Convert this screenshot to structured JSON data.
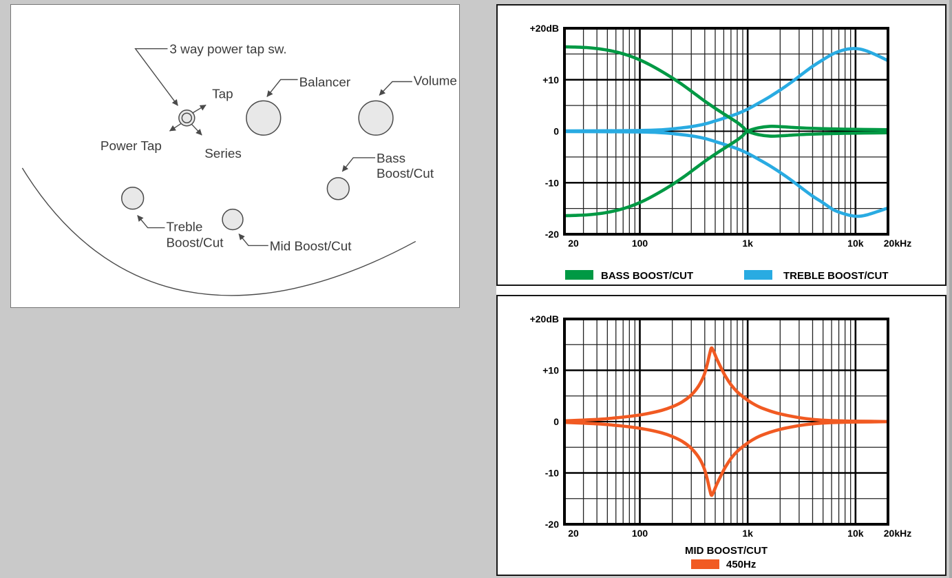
{
  "page": {
    "background_color": "#c9c9c9",
    "panel_color": "#ffffff"
  },
  "diagram": {
    "labels": {
      "power_tap_switch": "3 way power tap sw.",
      "tap": "Tap",
      "power_tap": "Power Tap",
      "series": "Series",
      "balancer": "Balancer",
      "volume": "Volume",
      "bass_line1": "Bass",
      "bass_line2": "Boost/Cut",
      "treble_line1": "Treble",
      "treble_line2": "Boost/Cut",
      "mid": "Mid Boost/Cut"
    },
    "knob_fill": "#e8e8e8",
    "line_color": "#4a4a4a"
  },
  "chart_data": [
    {
      "type": "line",
      "title": "",
      "x_axis": {
        "scale": "log",
        "min": 20,
        "max": 20000,
        "unit": "Hz",
        "ticks": [
          {
            "v": 20,
            "label": "20"
          },
          {
            "v": 100,
            "label": "100"
          },
          {
            "v": 1000,
            "label": "1k"
          },
          {
            "v": 10000,
            "label": "10k"
          },
          {
            "v": 20000,
            "label": "20kHz"
          }
        ]
      },
      "y_axis": {
        "min": -20,
        "max": 20,
        "unit": "dB",
        "ticks": [
          {
            "v": 20,
            "label": "+20dB"
          },
          {
            "v": 10,
            "label": "+10"
          },
          {
            "v": 0,
            "label": "0"
          },
          {
            "v": -10,
            "label": "-10"
          },
          {
            "v": -20,
            "label": "-20"
          }
        ]
      },
      "grid": {
        "x_minor_decades": true,
        "y_minor_step": 5,
        "y_major_step": 10
      },
      "series": [
        {
          "name": "BASS BOOST/CUT",
          "color": "#009944",
          "curves": {
            "boost": [
              [
                20,
                16.4
              ],
              [
                25,
                16.35
              ],
              [
                32,
                16.25
              ],
              [
                40,
                16.05
              ],
              [
                50,
                15.75
              ],
              [
                63,
                15.3
              ],
              [
                80,
                14.65
              ],
              [
                100,
                13.85
              ],
              [
                125,
                12.85
              ],
              [
                160,
                11.6
              ],
              [
                200,
                10.35
              ],
              [
                250,
                9.0
              ],
              [
                320,
                7.35
              ],
              [
                400,
                5.85
              ],
              [
                500,
                4.45
              ],
              [
                630,
                3.1
              ],
              [
                800,
                1.7
              ],
              [
                900,
                0.85
              ],
              [
                1000,
                0.0
              ],
              [
                1250,
                -0.65
              ],
              [
                1600,
                -0.95
              ],
              [
                2000,
                -0.9
              ],
              [
                2600,
                -0.75
              ],
              [
                3500,
                -0.6
              ],
              [
                5000,
                -0.5
              ],
              [
                8000,
                -0.4
              ],
              [
                12000,
                -0.35
              ],
              [
                20000,
                -0.3
              ]
            ],
            "cut": [
              [
                20,
                -16.4
              ],
              [
                25,
                -16.35
              ],
              [
                32,
                -16.25
              ],
              [
                40,
                -16.05
              ],
              [
                50,
                -15.75
              ],
              [
                63,
                -15.3
              ],
              [
                80,
                -14.65
              ],
              [
                100,
                -13.85
              ],
              [
                125,
                -12.85
              ],
              [
                160,
                -11.6
              ],
              [
                200,
                -10.35
              ],
              [
                250,
                -9.0
              ],
              [
                320,
                -7.35
              ],
              [
                400,
                -5.85
              ],
              [
                500,
                -4.45
              ],
              [
                630,
                -3.1
              ],
              [
                800,
                -1.7
              ],
              [
                900,
                -0.85
              ],
              [
                1000,
                0.0
              ],
              [
                1250,
                0.65
              ],
              [
                1600,
                0.95
              ],
              [
                2000,
                0.9
              ],
              [
                2600,
                0.75
              ],
              [
                3500,
                0.6
              ],
              [
                5000,
                0.5
              ],
              [
                8000,
                0.4
              ],
              [
                12000,
                0.35
              ],
              [
                20000,
                0.3
              ]
            ]
          }
        },
        {
          "name": "TREBLE BOOST/CUT",
          "color": "#29ABE2",
          "curves": {
            "boost": [
              [
                20,
                0.05
              ],
              [
                50,
                0.1
              ],
              [
                100,
                0.15
              ],
              [
                150,
                0.25
              ],
              [
                200,
                0.45
              ],
              [
                300,
                0.9
              ],
              [
                400,
                1.4
              ],
              [
                500,
                2.0
              ],
              [
                650,
                2.75
              ],
              [
                800,
                3.4
              ],
              [
                1000,
                4.3
              ],
              [
                1300,
                5.6
              ],
              [
                1600,
                6.7
              ],
              [
                2000,
                8.0
              ],
              [
                2500,
                9.4
              ],
              [
                3200,
                11.1
              ],
              [
                4000,
                12.6
              ],
              [
                5000,
                13.9
              ],
              [
                6300,
                15.1
              ],
              [
                8000,
                15.85
              ],
              [
                9500,
                16.05
              ],
              [
                11000,
                15.95
              ],
              [
                13000,
                15.5
              ],
              [
                16000,
                14.7
              ],
              [
                20000,
                13.7
              ]
            ],
            "cut": [
              [
                20,
                -0.05
              ],
              [
                50,
                -0.1
              ],
              [
                100,
                -0.15
              ],
              [
                150,
                -0.25
              ],
              [
                200,
                -0.45
              ],
              [
                300,
                -0.9
              ],
              [
                400,
                -1.4
              ],
              [
                500,
                -2.0
              ],
              [
                650,
                -2.75
              ],
              [
                800,
                -3.4
              ],
              [
                1000,
                -4.3
              ],
              [
                1300,
                -5.6
              ],
              [
                1600,
                -6.7
              ],
              [
                2000,
                -8.0
              ],
              [
                2500,
                -9.4
              ],
              [
                3200,
                -11.1
              ],
              [
                4000,
                -12.6
              ],
              [
                5000,
                -13.9
              ],
              [
                6300,
                -15.3
              ],
              [
                8000,
                -16.1
              ],
              [
                9500,
                -16.45
              ],
              [
                11000,
                -16.5
              ],
              [
                13000,
                -16.2
              ],
              [
                16000,
                -15.6
              ],
              [
                20000,
                -14.9
              ]
            ]
          }
        }
      ],
      "legend": [
        {
          "label": "BASS BOOST/CUT",
          "color": "#009944"
        },
        {
          "label": "TREBLE BOOST/CUT",
          "color": "#29ABE2"
        }
      ],
      "legend_position": "bottom"
    },
    {
      "type": "line",
      "title": "MID BOOST/CUT",
      "x_axis": {
        "scale": "log",
        "min": 20,
        "max": 20000,
        "unit": "Hz",
        "ticks": [
          {
            "v": 20,
            "label": "20"
          },
          {
            "v": 100,
            "label": "100"
          },
          {
            "v": 1000,
            "label": "1k"
          },
          {
            "v": 10000,
            "label": "10k"
          },
          {
            "v": 20000,
            "label": "20kHz"
          }
        ]
      },
      "y_axis": {
        "min": -20,
        "max": 20,
        "unit": "dB",
        "ticks": [
          {
            "v": 20,
            "label": "+20dB"
          },
          {
            "v": 10,
            "label": "+10"
          },
          {
            "v": 0,
            "label": "0"
          },
          {
            "v": -10,
            "label": "-10"
          },
          {
            "v": -20,
            "label": "-20"
          }
        ]
      },
      "grid": {
        "x_minor_decades": true,
        "y_minor_step": 5,
        "y_major_step": 10
      },
      "series": [
        {
          "name": "MID BOOST/CUT 450Hz",
          "color": "#F15A22",
          "curves": {
            "boost": [
              [
                20,
                0.15
              ],
              [
                30,
                0.3
              ],
              [
                45,
                0.5
              ],
              [
                65,
                0.8
              ],
              [
                90,
                1.15
              ],
              [
                120,
                1.6
              ],
              [
                160,
                2.2
              ],
              [
                200,
                2.9
              ],
              [
                250,
                3.9
              ],
              [
                300,
                5.2
              ],
              [
                350,
                6.9
              ],
              [
                390,
                8.8
              ],
              [
                420,
                11.0
              ],
              [
                445,
                13.3
              ],
              [
                462,
                14.35
              ],
              [
                485,
                13.6
              ],
              [
                515,
                12.3
              ],
              [
                560,
                10.7
              ],
              [
                620,
                8.9
              ],
              [
                700,
                7.2
              ],
              [
                800,
                5.8
              ],
              [
                950,
                4.5
              ],
              [
                1100,
                3.6
              ],
              [
                1300,
                2.8
              ],
              [
                1600,
                2.1
              ],
              [
                2000,
                1.5
              ],
              [
                2600,
                1.0
              ],
              [
                3400,
                0.6
              ],
              [
                4500,
                0.35
              ],
              [
                6000,
                0.2
              ],
              [
                9000,
                0.1
              ],
              [
                14000,
                0.05
              ],
              [
                20000,
                0.0
              ]
            ],
            "cut": [
              [
                20,
                -0.15
              ],
              [
                30,
                -0.3
              ],
              [
                45,
                -0.5
              ],
              [
                65,
                -0.8
              ],
              [
                90,
                -1.15
              ],
              [
                120,
                -1.6
              ],
              [
                160,
                -2.2
              ],
              [
                200,
                -2.9
              ],
              [
                250,
                -3.9
              ],
              [
                300,
                -5.2
              ],
              [
                350,
                -6.9
              ],
              [
                390,
                -8.8
              ],
              [
                420,
                -11.0
              ],
              [
                445,
                -13.3
              ],
              [
                462,
                -14.35
              ],
              [
                485,
                -13.6
              ],
              [
                515,
                -12.3
              ],
              [
                560,
                -10.7
              ],
              [
                620,
                -8.9
              ],
              [
                700,
                -7.2
              ],
              [
                800,
                -5.8
              ],
              [
                950,
                -4.5
              ],
              [
                1100,
                -3.6
              ],
              [
                1300,
                -2.8
              ],
              [
                1600,
                -2.1
              ],
              [
                2000,
                -1.5
              ],
              [
                2600,
                -1.0
              ],
              [
                3400,
                -0.6
              ],
              [
                4500,
                -0.35
              ],
              [
                6000,
                -0.2
              ],
              [
                9000,
                -0.1
              ],
              [
                14000,
                -0.05
              ],
              [
                20000,
                0.0
              ]
            ]
          }
        }
      ],
      "legend_title": "MID BOOST/CUT",
      "legend": [
        {
          "label": "450Hz",
          "color": "#F15A22"
        }
      ],
      "legend_position": "bottom-center"
    }
  ]
}
